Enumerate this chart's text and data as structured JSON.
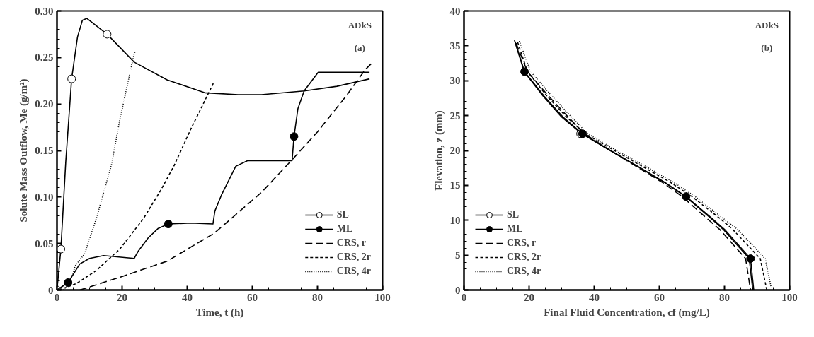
{
  "chart_data": [
    {
      "type": "line",
      "xlabel": "Time, t (h)",
      "ylabel": "Solute Mass Outflow, Me (g/m²)",
      "annotations": [
        "ADkS",
        "(a)"
      ],
      "xlim": [
        0,
        100
      ],
      "xticks": [
        0,
        20,
        40,
        60,
        80,
        100
      ],
      "ylim": [
        0,
        0.3
      ],
      "yticks": [
        0,
        0.05,
        {
          "value": 0.1,
          "label": "0.10"
        },
        0.15,
        {
          "value": 0.2,
          "label": "0.20"
        },
        0.25,
        {
          "value": 0.3,
          "label": "0.30"
        }
      ],
      "grid": false,
      "legend": "bottom right",
      "series": [
        {
          "name": "SL",
          "color": "#000000",
          "line_style": "solid",
          "x": [
            0,
            1.2,
            2.7,
            4.5,
            6.3,
            7.8,
            9.2,
            15.4,
            23.7,
            33.8,
            45.4,
            55.6,
            62.8,
            75.9,
            86,
            96
          ],
          "values": [
            0,
            0.044,
            0.138,
            0.227,
            0.272,
            0.29,
            0.292,
            0.275,
            0.245,
            0.226,
            0.212,
            0.21,
            0.21,
            0.214,
            0.219,
            0.227
          ]
        },
        {
          "type": "scatter",
          "marker": "circle",
          "color": "#ffffff",
          "x": [
            0,
            1.2,
            4.5,
            15.4
          ],
          "values": [
            0,
            0.044,
            0.227,
            0.275
          ]
        },
        {
          "name": "ML",
          "color": "#000000",
          "line_style": "solid",
          "x": [
            0,
            3.4,
            7,
            10,
            14.3,
            23.7,
            25,
            28,
            31,
            34.2,
            41.1,
            47.9,
            48.5,
            50.5,
            54.9,
            58.5,
            72.2,
            72.8,
            74,
            75.9,
            80.2,
            96
          ],
          "values": [
            0,
            0.008,
            0.028,
            0.034,
            0.037,
            0.034,
            0.042,
            0.056,
            0.066,
            0.071,
            0.072,
            0.071,
            0.085,
            0.102,
            0.133,
            0.139,
            0.139,
            0.165,
            0.195,
            0.214,
            0.234,
            0.234
          ]
        },
        {
          "type": "scatter",
          "marker": "circle",
          "color": "#000000",
          "x": [
            3.4,
            34.2,
            72.8
          ],
          "values": [
            0.008,
            0.071,
            0.165
          ]
        },
        {
          "name": "CRS, r",
          "color": "#000000",
          "line_style": "long dashed",
          "x": [
            7,
            20,
            33.8,
            48.3,
            62.8,
            72.2,
            80,
            88.9,
            94.7,
            97
          ],
          "values": [
            0,
            0.0145,
            0.031,
            0.061,
            0.105,
            0.14,
            0.17,
            0.209,
            0.237,
            0.245
          ]
        },
        {
          "name": "CRS, 2r",
          "color": "#000000",
          "line_style": "dashed",
          "x": [
            0.6,
            6,
            12.1,
            19.3,
            26.6,
            32,
            36,
            41.1,
            48
          ],
          "values": [
            0,
            0.007,
            0.021,
            0.044,
            0.077,
            0.108,
            0.134,
            0.173,
            0.222
          ]
        },
        {
          "name": "CRS, 4r",
          "color": "#000000",
          "line_style": "dotted",
          "x": [
            2,
            4,
            5.6,
            8.5,
            12.1,
            16.7,
            19.3,
            23.7,
            24
          ],
          "values": [
            0,
            0.008,
            0.026,
            0.039,
            0.077,
            0.134,
            0.183,
            0.254,
            0.256
          ]
        }
      ]
    },
    {
      "type": "line",
      "xlabel": "Final Fluid Concentration, cf (mg/L)",
      "ylabel": "Elevation, z (mm)",
      "annotations": [
        "ADkS",
        "(b)"
      ],
      "xlim": [
        0,
        100
      ],
      "xticks": [
        0,
        20,
        40,
        60,
        80,
        100
      ],
      "ylim": [
        0,
        40
      ],
      "yticks": [
        0,
        5,
        10,
        15,
        20,
        25,
        30,
        35,
        40
      ],
      "grid": false,
      "legend": "bottom left",
      "series": [
        {
          "name": "SL",
          "color": "#000000",
          "line_style": "solid",
          "x": [
            15.5,
            18.5,
            24.3,
            30,
            36.2,
            44.5,
            54.4,
            61.6,
            68,
            75.8,
            79.6,
            87.6,
            88.7
          ],
          "values": [
            35.8,
            31.3,
            27.8,
            24.8,
            22.4,
            20.1,
            17.4,
            15.4,
            13.4,
            10.3,
            8.7,
            4.5,
            0
          ]
        },
        {
          "type": "scatter",
          "marker": "circle",
          "color": "#ffffff",
          "x": [
            35.8
          ],
          "values": [
            22.4
          ]
        },
        {
          "name": "ML",
          "color": "#000000",
          "line_style": "solid",
          "x": [
            15.7,
            18.6,
            24.6,
            30.4,
            36.4,
            44.6,
            54.6,
            61.8,
            68.2,
            76.1,
            80,
            88,
            89
          ],
          "values": [
            35.6,
            31.3,
            27.8,
            24.8,
            22.4,
            20.1,
            17.4,
            15.4,
            13.4,
            10.3,
            8.7,
            4.5,
            0
          ]
        },
        {
          "type": "scatter",
          "marker": "circle",
          "color": "#000000",
          "x": [
            18.6,
            36.4,
            68.2,
            88
          ],
          "values": [
            31.3,
            22.4,
            13.4,
            4.5
          ]
        },
        {
          "name": "CRS, r",
          "color": "#000000",
          "line_style": "long dashed",
          "x": [
            16,
            19.5,
            26,
            32,
            37,
            44.6,
            54,
            61,
            67,
            74.5,
            78.5,
            86.5,
            88
          ],
          "values": [
            35.4,
            31.3,
            27.8,
            24.8,
            22.4,
            20.1,
            17.4,
            15.4,
            13.4,
            10.3,
            8.7,
            4.5,
            0
          ]
        },
        {
          "name": "CRS, 2r",
          "color": "#000000",
          "line_style": "dashed",
          "x": [
            16.5,
            19.5,
            25.5,
            31.5,
            37.2,
            45.8,
            56,
            63.5,
            70,
            78.5,
            82.5,
            91,
            93
          ],
          "values": [
            35.5,
            31.3,
            27.8,
            24.8,
            22.4,
            20.1,
            17.4,
            15.4,
            13.4,
            10.3,
            8.7,
            4.5,
            0
          ]
        },
        {
          "name": "CRS, 4r",
          "color": "#000000",
          "line_style": "dotted",
          "x": [
            17,
            20.5,
            27,
            33,
            38,
            46.5,
            57,
            64.5,
            71,
            79.5,
            84,
            92.5,
            94.5
          ],
          "values": [
            35.7,
            31.3,
            27.8,
            24.8,
            22.4,
            20.1,
            17.4,
            15.4,
            13.4,
            10.3,
            8.7,
            4.5,
            0
          ]
        }
      ]
    }
  ]
}
